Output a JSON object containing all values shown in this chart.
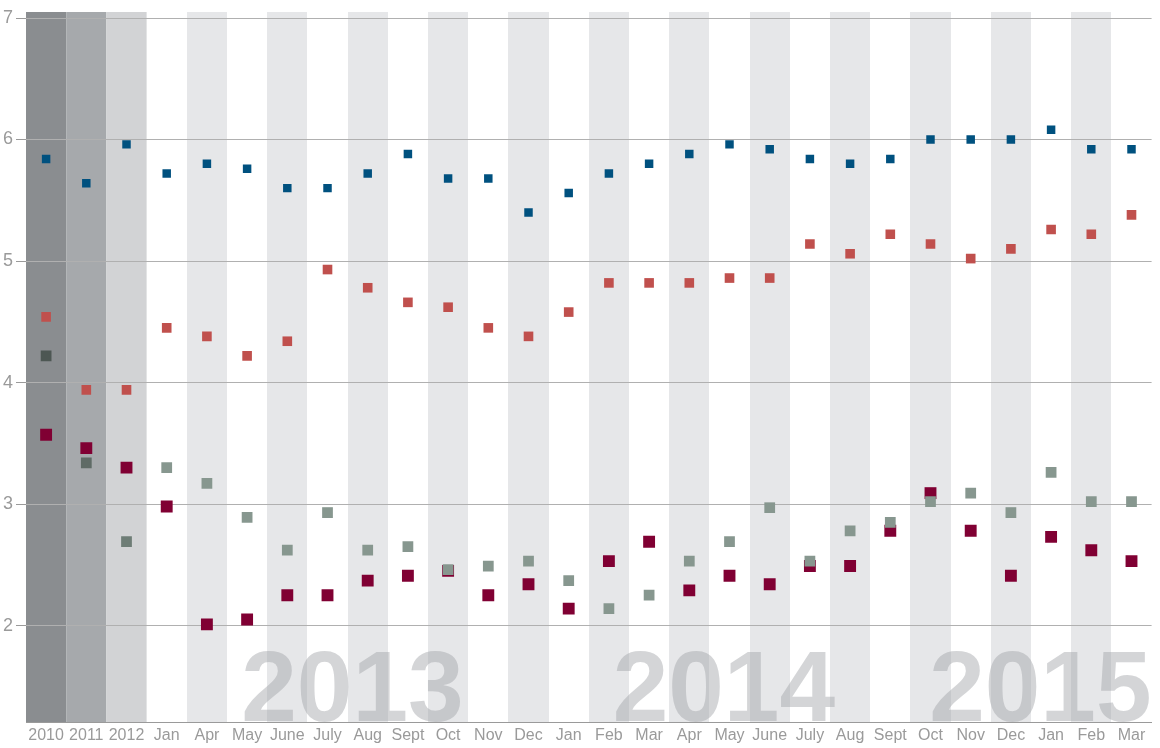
{
  "chart_data": {
    "type": "scatter",
    "categories": [
      "2010",
      "2011",
      "2012",
      "Jan",
      "Apr",
      "May",
      "June",
      "July",
      "Aug",
      "Sept",
      "Oct",
      "Nov",
      "Dec",
      "Jan",
      "Feb",
      "Mar",
      "Apr",
      "May",
      "June",
      "July",
      "Aug",
      "Sept",
      "Oct",
      "Nov",
      "Dec",
      "Jan",
      "Feb",
      "Mar"
    ],
    "series": [
      {
        "color": "#00517f",
        "values": [
          5.84,
          5.64,
          5.96,
          5.72,
          5.8,
          5.76,
          5.6,
          5.6,
          5.72,
          5.88,
          5.68,
          5.68,
          5.4,
          5.56,
          5.72,
          5.8,
          5.88,
          5.96,
          5.92,
          5.84,
          5.8,
          5.84,
          6.0,
          6.0,
          6.0,
          6.08,
          5.92,
          5.92
        ]
      },
      {
        "color": "#c0504d",
        "values": [
          4.54,
          3.94,
          3.94,
          4.45,
          4.38,
          4.22,
          4.34,
          4.93,
          4.78,
          4.66,
          4.62,
          4.45,
          4.38,
          4.58,
          4.82,
          4.82,
          4.82,
          4.86,
          4.86,
          5.14,
          5.06,
          5.22,
          5.14,
          5.02,
          5.1,
          5.26,
          5.22,
          5.38
        ]
      },
      {
        "colors": [
          "#4d5753",
          "#5f6b66",
          "#6e7d76",
          "#87978f",
          "#87978f",
          "#87978f",
          "#87978f",
          "#87978f",
          "#87978f",
          "#87978f",
          "#87978f",
          "#87978f",
          "#87978f",
          "#87978f",
          "#87978f",
          "#87978f",
          "#87978f",
          "#87978f",
          "#87978f",
          "#87978f",
          "#87978f",
          "#87978f",
          "#87978f",
          "#87978f",
          "#87978f",
          "#87978f",
          "#87978f",
          "#87978f"
        ],
        "values": [
          4.22,
          3.34,
          2.69,
          3.3,
          3.17,
          2.89,
          2.62,
          2.93,
          2.62,
          2.65,
          2.46,
          2.49,
          2.53,
          2.37,
          2.14,
          2.25,
          2.53,
          2.69,
          2.97,
          2.53,
          2.78,
          2.85,
          3.02,
          3.09,
          2.93,
          3.26,
          3.02,
          3.02
        ]
      },
      {
        "color": "#800033",
        "values": [
          3.57,
          3.46,
          3.3,
          2.98,
          2.01,
          2.05,
          2.25,
          2.25,
          2.37,
          2.41,
          2.45,
          2.25,
          2.34,
          2.14,
          2.53,
          2.69,
          2.29,
          2.41,
          2.34,
          2.49,
          2.49,
          2.78,
          3.09,
          2.78,
          2.41,
          2.73,
          2.62,
          2.53
        ]
      }
    ],
    "annotations": [
      "2013",
      "2014",
      "2015"
    ],
    "marker": "square",
    "bands": [
      {
        "axis": "x",
        "from": "2010",
        "to": "2010",
        "color": "#8a8d90"
      },
      {
        "axis": "x",
        "from": "2011",
        "to": "2011",
        "color": "#a6a9ac"
      },
      {
        "axis": "x",
        "from": "2012",
        "to": "2012",
        "color": "#d2d3d5"
      }
    ],
    "ylim": [
      1.2,
      7
    ],
    "yticks": [
      2,
      3,
      4,
      5,
      6,
      7
    ],
    "grid": "y",
    "legend": false
  }
}
